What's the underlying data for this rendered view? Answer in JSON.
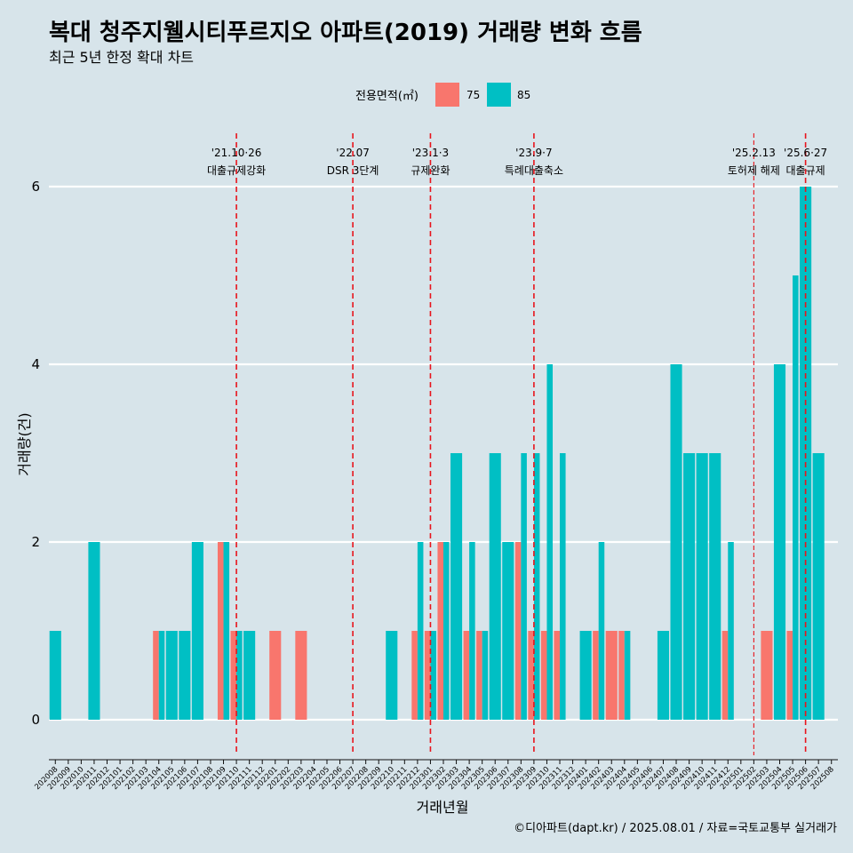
{
  "chart_data": {
    "type": "bar",
    "title": "복대 청주지웰시티푸르지오 아파트(2019) 거래량 변화 흐름",
    "subtitle": "최근 5년 한정 확대 차트",
    "xlabel": "거래년월",
    "ylabel": "거래량(건)",
    "caption": "©디아파트(dapt.kr) / 2025.08.01 / 자료=국토교통부 실거래가",
    "legend_title": "전용면적(㎡)",
    "legend_position": "top",
    "ylim": [
      -0.4,
      6.6
    ],
    "yticks": [
      0,
      2,
      4,
      6
    ],
    "categories": [
      "202008",
      "202009",
      "202010",
      "202011",
      "202012",
      "202101",
      "202102",
      "202103",
      "202104",
      "202105",
      "202106",
      "202107",
      "202108",
      "202109",
      "202110",
      "202111",
      "202112",
      "202201",
      "202202",
      "202203",
      "202204",
      "202205",
      "202206",
      "202207",
      "202208",
      "202209",
      "202210",
      "202211",
      "202212",
      "202301",
      "202302",
      "202303",
      "202304",
      "202305",
      "202306",
      "202307",
      "202308",
      "202309",
      "202310",
      "202311",
      "202312",
      "202401",
      "202402",
      "202403",
      "202404",
      "202405",
      "202406",
      "202407",
      "202408",
      "202409",
      "202410",
      "202411",
      "202412",
      "202501",
      "202502",
      "202503",
      "202504",
      "202505",
      "202506",
      "202507",
      "202508"
    ],
    "series": [
      {
        "name": "75",
        "color": "#f8766d",
        "values": [
          0,
          0,
          0,
          0,
          0,
          0,
          0,
          0,
          1,
          0,
          0,
          0,
          0,
          2,
          1,
          0,
          0,
          1,
          0,
          1,
          0,
          0,
          0,
          0,
          0,
          0,
          0,
          0,
          1,
          1,
          2,
          0,
          1,
          1,
          0,
          0,
          2,
          1,
          1,
          1,
          0,
          0,
          1,
          1,
          1,
          0,
          0,
          0,
          0,
          0,
          0,
          0,
          1,
          0,
          0,
          1,
          0,
          1,
          0,
          0,
          0
        ]
      },
      {
        "name": "85",
        "color": "#00bfc4",
        "values": [
          1,
          0,
          0,
          2,
          0,
          0,
          0,
          0,
          1,
          1,
          1,
          2,
          0,
          2,
          1,
          1,
          0,
          0,
          0,
          0,
          0,
          0,
          0,
          0,
          0,
          0,
          1,
          0,
          2,
          1,
          2,
          3,
          2,
          1,
          3,
          2,
          3,
          3,
          4,
          3,
          0,
          1,
          2,
          0,
          1,
          0,
          0,
          1,
          4,
          3,
          3,
          3,
          2,
          0,
          0,
          0,
          4,
          5,
          6,
          3,
          0
        ]
      }
    ],
    "events": [
      {
        "date": "'21.10·26",
        "label": "대출규제강화",
        "at": "202110",
        "major": true
      },
      {
        "date": "'22.07",
        "label": "DSR 3단계",
        "at": "202207",
        "major": true
      },
      {
        "date": "'23.1·3",
        "label": "규제완화",
        "at": "202301",
        "major": true
      },
      {
        "date": "'23.9·7",
        "label": "특례대출축소",
        "at": "202309",
        "major": true
      },
      {
        "date": "'25.2.13",
        "label": "토허제 해제",
        "at": "202502",
        "major": false
      },
      {
        "date": "'25.6·27",
        "label": "대출규제",
        "at": "202506",
        "major": true
      }
    ],
    "grid": true
  }
}
